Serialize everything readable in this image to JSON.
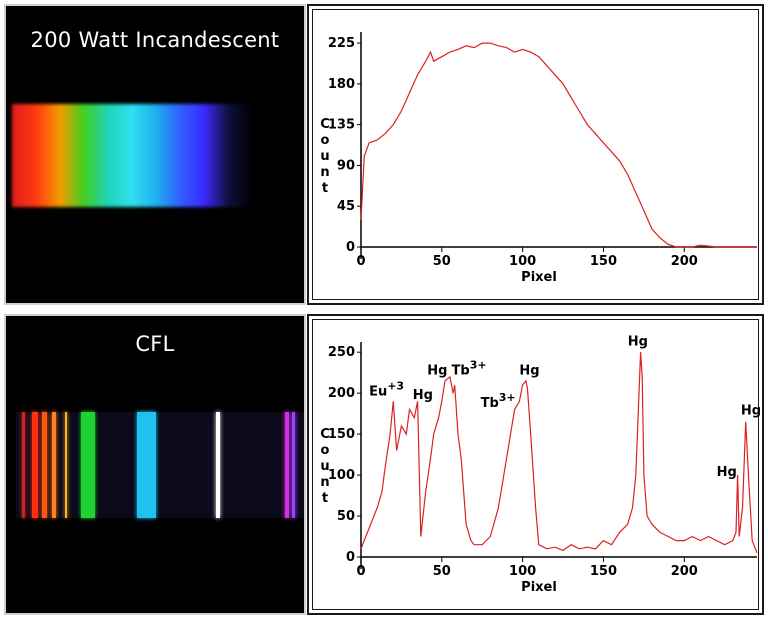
{
  "spectra": [
    {
      "title": "200 Watt Incandescent",
      "gradient": [
        "#e01e1e",
        "#ff3a10",
        "#f59a00",
        "#40d020",
        "#20d4b8",
        "#30e0f0",
        "#20b0f0",
        "#3060ff",
        "#3a2aff",
        "#101040",
        "#000000"
      ]
    },
    {
      "title": "CFL",
      "lines": [
        {
          "pos": 0.02,
          "w": 0.012,
          "color": "#d02020"
        },
        {
          "pos": 0.055,
          "w": 0.02,
          "color": "#ff3010"
        },
        {
          "pos": 0.09,
          "w": 0.018,
          "color": "#ff5510"
        },
        {
          "pos": 0.125,
          "w": 0.015,
          "color": "#ff8020"
        },
        {
          "pos": 0.17,
          "w": 0.008,
          "color": "#ffb020"
        },
        {
          "pos": 0.225,
          "w": 0.05,
          "color": "#20d030"
        },
        {
          "pos": 0.42,
          "w": 0.065,
          "color": "#20c0f0"
        },
        {
          "pos": 0.695,
          "w": 0.012,
          "color": "#ffffff"
        },
        {
          "pos": 0.935,
          "w": 0.012,
          "color": "#d030e0"
        },
        {
          "pos": 0.96,
          "w": 0.01,
          "color": "#a040ff"
        }
      ]
    }
  ],
  "chart_data": [
    {
      "type": "line",
      "xlabel": "Pixel",
      "ylabel": "Count",
      "xlim": [
        0,
        245
      ],
      "ylim": [
        0,
        235
      ],
      "xticks": [
        0,
        50,
        100,
        150,
        200
      ],
      "yticks": [
        0,
        45,
        90,
        135,
        180,
        225
      ],
      "line_color": "#dd2020",
      "series": [
        {
          "x": [
            0,
            2,
            5,
            10,
            15,
            20,
            25,
            30,
            35,
            40,
            43,
            45,
            50,
            55,
            60,
            65,
            70,
            75,
            80,
            85,
            90,
            95,
            100,
            105,
            110,
            115,
            120,
            125,
            130,
            135,
            140,
            145,
            150,
            155,
            160,
            165,
            170,
            175,
            180,
            185,
            190,
            195,
            200,
            205,
            210,
            215,
            220,
            230,
            240,
            245
          ],
          "y": [
            30,
            100,
            115,
            118,
            125,
            135,
            150,
            170,
            190,
            205,
            215,
            205,
            210,
            215,
            218,
            222,
            220,
            225,
            225,
            222,
            220,
            215,
            218,
            215,
            210,
            200,
            190,
            180,
            165,
            150,
            135,
            125,
            115,
            105,
            95,
            80,
            60,
            40,
            20,
            10,
            3,
            0,
            0,
            0,
            2,
            1,
            0,
            0,
            0,
            0
          ]
        }
      ]
    },
    {
      "type": "line",
      "xlabel": "Pixel",
      "ylabel": "Count",
      "xlim": [
        0,
        245
      ],
      "ylim": [
        0,
        260
      ],
      "xticks": [
        0,
        50,
        100,
        150,
        200
      ],
      "yticks": [
        0,
        50,
        100,
        150,
        200,
        250
      ],
      "line_color": "#dd2020",
      "annotations": [
        {
          "label": "Eu",
          "sup": "+3",
          "x": 5,
          "y": 197
        },
        {
          "label": "Hg",
          "sup": "",
          "x": 32,
          "y": 193
        },
        {
          "label": "Hg",
          "sup": "",
          "x": 41,
          "y": 223
        },
        {
          "label": "Tb",
          "sup": "3+",
          "x": 56,
          "y": 223
        },
        {
          "label": "Tb",
          "sup": "3+",
          "x": 74,
          "y": 183
        },
        {
          "label": "Hg",
          "sup": "",
          "x": 98,
          "y": 223
        },
        {
          "label": "Hg",
          "sup": "",
          "x": 165,
          "y": 258
        },
        {
          "label": "Hg",
          "sup": "",
          "x": 220,
          "y": 99
        },
        {
          "label": "Hg",
          "sup": "",
          "x": 235,
          "y": 174
        }
      ],
      "series": [
        {
          "x": [
            0,
            3,
            6,
            10,
            13,
            15,
            18,
            20,
            22,
            25,
            28,
            30,
            33,
            35,
            37,
            40,
            43,
            45,
            48,
            50,
            52,
            55,
            57,
            58,
            60,
            62,
            65,
            68,
            70,
            75,
            80,
            85,
            90,
            95,
            98,
            100,
            102,
            103,
            105,
            108,
            110,
            115,
            120,
            125,
            130,
            135,
            140,
            145,
            150,
            155,
            160,
            165,
            168,
            170,
            172,
            173,
            174,
            175,
            177,
            180,
            185,
            190,
            195,
            200,
            205,
            210,
            215,
            220,
            225,
            230,
            232,
            233,
            234,
            236,
            238,
            240,
            242,
            244,
            245
          ],
          "y": [
            10,
            25,
            40,
            60,
            80,
            110,
            150,
            190,
            130,
            160,
            150,
            180,
            170,
            190,
            25,
            80,
            120,
            150,
            170,
            190,
            215,
            220,
            200,
            210,
            150,
            120,
            40,
            20,
            15,
            15,
            25,
            60,
            120,
            180,
            190,
            210,
            215,
            205,
            150,
            60,
            15,
            10,
            12,
            8,
            15,
            10,
            12,
            10,
            20,
            15,
            30,
            40,
            60,
            100,
            200,
            250,
            220,
            100,
            50,
            40,
            30,
            25,
            20,
            20,
            25,
            20,
            25,
            20,
            15,
            20,
            30,
            100,
            25,
            60,
            165,
            90,
            20,
            10,
            5
          ]
        }
      ]
    }
  ]
}
